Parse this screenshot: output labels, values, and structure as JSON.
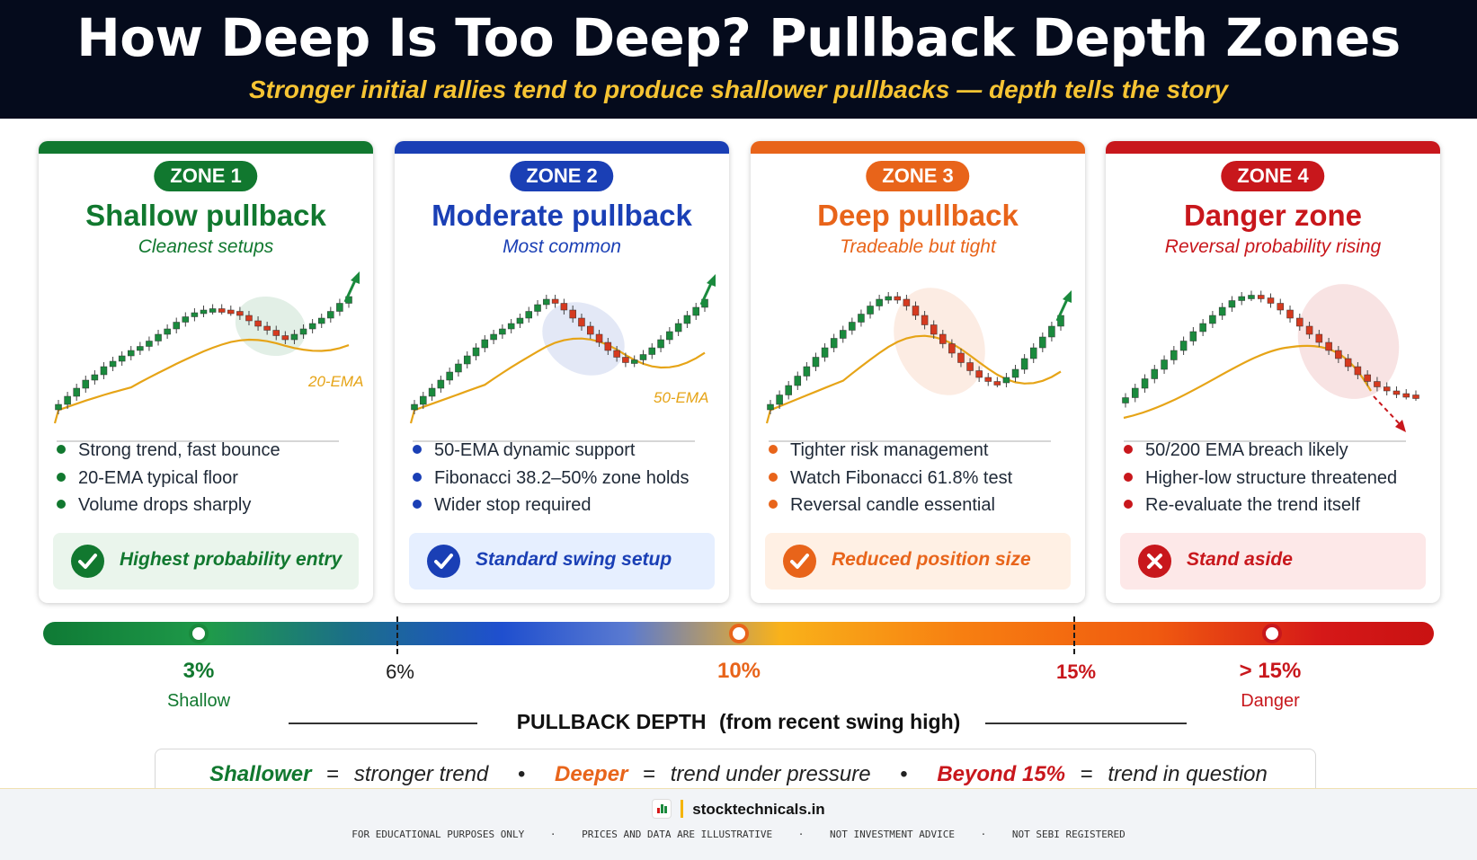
{
  "header": {
    "title": "How Deep Is Too Deep? Pullback Depth Zones",
    "subtitle": "Stronger initial rallies tend to produce shallower pullbacks — depth tells the story"
  },
  "zones": [
    {
      "badge": "ZONE 1",
      "title": "Shallow pullback",
      "subtitle": "Cleanest setups",
      "ema_label": "20-EMA",
      "color": "#11782f",
      "bullets": [
        "Strong trend, fast bounce",
        "20-EMA typical floor",
        "Volume drops sharply"
      ],
      "verdict": "Highest probability entry",
      "verdict_icon": "check-icon",
      "verdict_bg": "#eaf5ec"
    },
    {
      "badge": "ZONE 2",
      "title": "Moderate pullback",
      "subtitle": "Most common",
      "ema_label": "50-EMA",
      "color": "#1a3fb5",
      "bullets": [
        "50-EMA dynamic support",
        "Fibonacci 38.2–50% zone holds",
        "Wider stop required"
      ],
      "verdict": "Standard swing setup",
      "verdict_icon": "check-icon",
      "verdict_bg": "#e6efff"
    },
    {
      "badge": "ZONE 3",
      "title": "Deep pullback",
      "subtitle": "Tradeable but tight",
      "ema_label": "",
      "color": "#e8641a",
      "bullets": [
        "Tighter risk management",
        "Watch Fibonacci 61.8% test",
        "Reversal candle essential"
      ],
      "verdict": "Reduced position size",
      "verdict_icon": "check-icon",
      "verdict_bg": "#fff0e4"
    },
    {
      "badge": "ZONE 4",
      "title": "Danger zone",
      "subtitle": "Reversal probability rising",
      "ema_label": "",
      "color": "#c8171c",
      "bullets": [
        "50/200 EMA breach likely",
        "Higher-low structure threatened",
        "Re-evaluate the trend itself"
      ],
      "verdict": "Stand aside",
      "verdict_icon": "x-icon",
      "verdict_bg": "#fde8e8"
    }
  ],
  "scale": {
    "labels": [
      {
        "value": "3%",
        "caption": "Shallow",
        "color": "#11782f"
      },
      {
        "value": "6%",
        "caption": "",
        "color": "#1a1a1a"
      },
      {
        "value": "10%",
        "caption": "",
        "color": "#e8641a"
      },
      {
        "value": "15%",
        "caption": "",
        "color": "#c8171c"
      },
      {
        "value": "> 15%",
        "caption": "Danger",
        "color": "#c8171c"
      }
    ],
    "title": "PULLBACK DEPTH",
    "title_note": "(from recent swing high)"
  },
  "legend": {
    "shallower": "Shallower",
    "shallower_def": "stronger trend",
    "deeper": "Deeper",
    "deeper_def": "trend under pressure",
    "beyond": "Beyond 15%",
    "beyond_def": "trend in question",
    "eq": "=",
    "sep": "•"
  },
  "footer": {
    "brand": "stocktechnicals.in",
    "disclaimers": [
      "FOR EDUCATIONAL PURPOSES ONLY",
      "PRICES AND DATA ARE ILLUSTRATIVE",
      "NOT INVESTMENT ADVICE",
      "NOT SEBI REGISTERED"
    ],
    "sep": "·"
  }
}
